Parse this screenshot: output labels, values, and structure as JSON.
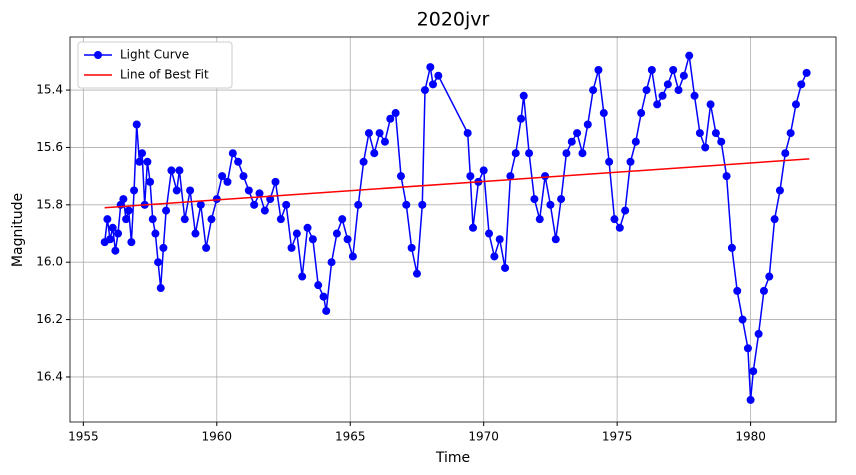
{
  "chart_data": {
    "type": "line",
    "title": "2020jvr",
    "x_label": "Time",
    "y_label": "Magnitude",
    "xlim": [
      1954.5,
      1983.2
    ],
    "xticks": [
      1955,
      1960,
      1965,
      1970,
      1975,
      1980
    ],
    "ylim": [
      16.557,
      15.215
    ],
    "yticks": [
      15.4,
      15.6,
      15.8,
      {
        "value": 16,
        "label": "16.0"
      },
      16.2,
      16.4
    ],
    "grid": true,
    "legend": "upper left",
    "series": [
      {
        "name": "Light Curve",
        "color": "#0000ff",
        "marker": "circle",
        "x": [
          1955.8,
          1955.9,
          1956.0,
          1956.1,
          1956.2,
          1956.3,
          1956.4,
          1956.5,
          1956.6,
          1956.7,
          1956.8,
          1956.9,
          1957.0,
          1957.1,
          1957.2,
          1957.3,
          1957.4,
          1957.5,
          1957.6,
          1957.7,
          1957.8,
          1957.9,
          1958.0,
          1958.1,
          1958.3,
          1958.5,
          1958.6,
          1958.8,
          1959.0,
          1959.2,
          1959.4,
          1959.6,
          1959.8,
          1960.0,
          1960.2,
          1960.4,
          1960.6,
          1960.8,
          1961.0,
          1961.2,
          1961.4,
          1961.6,
          1961.8,
          1962.0,
          1962.2,
          1962.4,
          1962.6,
          1962.8,
          1963.0,
          1963.2,
          1963.4,
          1963.6,
          1963.8,
          1964.0,
          1964.1,
          1964.3,
          1964.5,
          1964.7,
          1964.9,
          1965.1,
          1965.3,
          1965.5,
          1965.7,
          1965.9,
          1966.1,
          1966.3,
          1966.5,
          1966.7,
          1966.9,
          1967.1,
          1967.3,
          1967.5,
          1967.7,
          1967.8,
          1968.0,
          1968.1,
          1968.3,
          1969.4,
          1969.5,
          1969.6,
          1969.8,
          1970.0,
          1970.2,
          1970.4,
          1970.6,
          1970.8,
          1971.0,
          1971.2,
          1971.4,
          1971.5,
          1971.7,
          1971.9,
          1972.1,
          1972.3,
          1972.5,
          1972.7,
          1972.9,
          1973.1,
          1973.3,
          1973.5,
          1973.7,
          1973.9,
          1974.1,
          1974.3,
          1974.5,
          1974.7,
          1974.9,
          1975.1,
          1975.3,
          1975.5,
          1975.7,
          1975.9,
          1976.1,
          1976.3,
          1976.5,
          1976.7,
          1976.9,
          1977.1,
          1977.3,
          1977.5,
          1977.7,
          1977.9,
          1978.1,
          1978.3,
          1978.5,
          1978.7,
          1978.9,
          1979.1,
          1979.3,
          1979.5,
          1979.7,
          1979.9,
          1980.0,
          1980.1,
          1980.3,
          1980.5,
          1980.7,
          1980.9,
          1981.1,
          1981.3,
          1981.5,
          1981.7,
          1981.9,
          1982.1
        ],
        "values": [
          15.93,
          15.85,
          15.92,
          15.88,
          15.96,
          15.9,
          15.8,
          15.78,
          15.85,
          15.82,
          15.93,
          15.75,
          15.52,
          15.65,
          15.62,
          15.8,
          15.65,
          15.72,
          15.85,
          15.9,
          16.0,
          16.09,
          15.95,
          15.82,
          15.68,
          15.75,
          15.68,
          15.85,
          15.75,
          15.9,
          15.8,
          15.95,
          15.85,
          15.78,
          15.7,
          15.72,
          15.62,
          15.65,
          15.7,
          15.75,
          15.8,
          15.76,
          15.82,
          15.78,
          15.72,
          15.85,
          15.8,
          15.95,
          15.9,
          16.05,
          15.88,
          15.92,
          16.08,
          16.12,
          16.17,
          16.0,
          15.9,
          15.85,
          15.92,
          15.98,
          15.8,
          15.65,
          15.55,
          15.62,
          15.55,
          15.58,
          15.5,
          15.48,
          15.7,
          15.8,
          15.95,
          16.04,
          15.8,
          15.4,
          15.32,
          15.38,
          15.35,
          15.55,
          15.7,
          15.88,
          15.72,
          15.68,
          15.9,
          15.98,
          15.92,
          16.02,
          15.7,
          15.62,
          15.5,
          15.42,
          15.62,
          15.78,
          15.85,
          15.7,
          15.8,
          15.92,
          15.78,
          15.62,
          15.58,
          15.55,
          15.62,
          15.52,
          15.4,
          15.33,
          15.48,
          15.65,
          15.85,
          15.88,
          15.82,
          15.65,
          15.58,
          15.48,
          15.4,
          15.33,
          15.45,
          15.42,
          15.38,
          15.33,
          15.4,
          15.35,
          15.28,
          15.42,
          15.55,
          15.6,
          15.45,
          15.55,
          15.58,
          15.7,
          15.95,
          16.1,
          16.2,
          16.3,
          16.48,
          16.38,
          16.25,
          16.1,
          16.05,
          15.85,
          15.75,
          15.62,
          15.55,
          15.45,
          15.38,
          15.34
        ]
      },
      {
        "name": "Line of Best Fit",
        "color": "#ff0000",
        "x": [
          1955.8,
          1982.2
        ],
        "values": [
          15.81,
          15.64
        ]
      }
    ]
  }
}
